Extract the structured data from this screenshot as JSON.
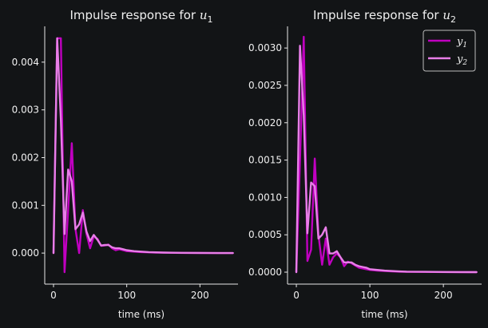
{
  "chart_data": [
    {
      "type": "line",
      "title": "Impulse response for",
      "title_math": "u",
      "title_sub": "1",
      "xlabel": "time (ms)",
      "ylabel": "",
      "xlim": [
        -12,
        252
      ],
      "ylim": [
        -0.00065,
        0.00475
      ],
      "xticks": [
        0,
        100,
        200
      ],
      "xtick_labels": [
        "0",
        "100",
        "200"
      ],
      "yticks": [
        0,
        0.001,
        0.002,
        0.003,
        0.004
      ],
      "ytick_labels": [
        "0.000",
        "0.001",
        "0.002",
        "0.003",
        "0.004"
      ],
      "grid": false,
      "legend": null,
      "series": [
        {
          "name": "y1",
          "color": "#c000c0",
          "x": [
            0,
            5,
            10,
            15,
            20,
            25,
            30,
            35,
            40,
            45,
            50,
            55,
            60,
            65,
            70,
            75,
            80,
            85,
            90,
            95,
            100,
            110,
            120,
            130,
            140,
            150,
            175,
            200,
            225,
            245
          ],
          "y": [
            0,
            0.0045,
            0.0045,
            -0.0004,
            0.0009,
            0.0023,
            0.0005,
            0.0,
            0.0009,
            0.0004,
            0.0001,
            0.00035,
            0.0003,
            0.00015,
            0.00016,
            0.00018,
            0.0001,
            6e-05,
            8e-05,
            6e-05,
            4e-05,
            3e-05,
            2e-05,
            1.5e-05,
            1e-05,
            8e-06,
            4e-06,
            2e-06,
            1e-06,
            0.0
          ]
        },
        {
          "name": "y2",
          "color": "#e87ee8",
          "x": [
            0,
            5,
            10,
            15,
            20,
            25,
            30,
            35,
            40,
            45,
            50,
            55,
            60,
            65,
            70,
            75,
            80,
            85,
            90,
            95,
            100,
            110,
            120,
            130,
            140,
            150,
            175,
            200,
            225,
            245
          ],
          "y": [
            0,
            0.0045,
            0.0028,
            0.0004,
            0.00175,
            0.0015,
            0.0005,
            0.0006,
            0.00085,
            0.00045,
            0.00025,
            0.00038,
            0.00028,
            0.00016,
            0.00017,
            0.00017,
            0.00012,
            0.0001,
            0.0001,
            8e-05,
            6e-05,
            4e-05,
            3e-05,
            2e-05,
            1.5e-05,
            1e-05,
            6e-06,
            3e-06,
            1e-06,
            0.0
          ]
        }
      ]
    },
    {
      "type": "line",
      "title": "Impulse response for",
      "title_math": "u",
      "title_sub": "2",
      "xlabel": "time (ms)",
      "ylabel": "",
      "xlim": [
        -12,
        252
      ],
      "ylim": [
        -0.00016,
        0.00329
      ],
      "xticks": [
        0,
        100,
        200
      ],
      "xtick_labels": [
        "0",
        "100",
        "200"
      ],
      "yticks": [
        0,
        0.0005,
        0.001,
        0.0015,
        0.002,
        0.0025,
        0.003
      ],
      "ytick_labels": [
        "0.0000",
        "0.0005",
        "0.0010",
        "0.0015",
        "0.0020",
        "0.0025",
        "0.0030"
      ],
      "grid": false,
      "legend": {
        "placement": "top-right",
        "entries": [
          {
            "label": "y",
            "sub": "1",
            "color": "#c000c0"
          },
          {
            "label": "y",
            "sub": "2",
            "color": "#e87ee8"
          }
        ]
      },
      "series": [
        {
          "name": "y1",
          "color": "#c000c0",
          "x": [
            0,
            5,
            10,
            15,
            20,
            25,
            30,
            35,
            40,
            45,
            50,
            55,
            60,
            65,
            70,
            75,
            80,
            85,
            90,
            95,
            100,
            110,
            120,
            130,
            140,
            150,
            175,
            200,
            225,
            245
          ],
          "y": [
            0,
            0.0015,
            0.00315,
            0.00015,
            0.0003,
            0.00152,
            0.0005,
            0.0001,
            0.00045,
            0.0001,
            0.0002,
            0.00025,
            0.0002,
            8e-05,
            0.00014,
            0.00012,
            9e-05,
            6e-05,
            5e-05,
            4e-05,
            3e-05,
            2e-05,
            1.5e-05,
            1e-05,
            7e-06,
            5e-06,
            3e-06,
            1e-06,
            5e-07,
            0.0
          ]
        },
        {
          "name": "y2",
          "color": "#e87ee8",
          "x": [
            0,
            5,
            10,
            15,
            20,
            25,
            30,
            35,
            40,
            45,
            50,
            55,
            60,
            65,
            70,
            75,
            80,
            85,
            90,
            95,
            100,
            110,
            120,
            130,
            140,
            150,
            175,
            200,
            225,
            245
          ],
          "y": [
            0,
            0.00303,
            0.0021,
            0.00052,
            0.0012,
            0.00115,
            0.00045,
            0.0005,
            0.0006,
            0.00025,
            0.00025,
            0.00028,
            0.0002,
            0.00013,
            0.00013,
            0.00013,
            0.0001,
            8e-05,
            7e-05,
            6e-05,
            4e-05,
            3e-05,
            2e-05,
            1.5e-05,
            1e-05,
            7e-06,
            4e-06,
            2e-06,
            1e-06,
            0.0
          ]
        }
      ]
    }
  ]
}
